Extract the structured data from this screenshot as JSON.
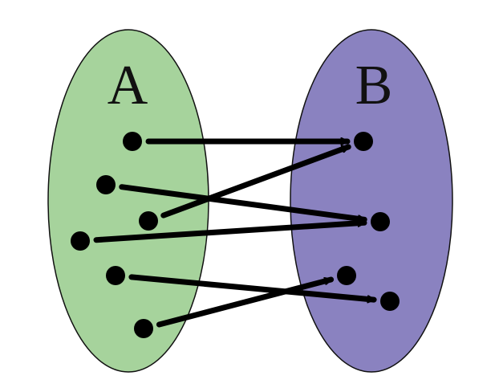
{
  "sets": [
    {
      "id": "A",
      "label": "A",
      "fill": "#A6D39C"
    },
    {
      "id": "B",
      "label": "B",
      "fill": "#8A82C0"
    }
  ],
  "colors": {
    "outline": "#111111",
    "point": "#000000",
    "arrow": "#000000"
  },
  "domain_point_count": 6,
  "codomain_point_count": 4,
  "mapping": [
    {
      "from": 0,
      "to": 0
    },
    {
      "from": 1,
      "to": 1
    },
    {
      "from": 2,
      "to": 0
    },
    {
      "from": 3,
      "to": 1
    },
    {
      "from": 4,
      "to": 3
    },
    {
      "from": 5,
      "to": 2
    }
  ]
}
